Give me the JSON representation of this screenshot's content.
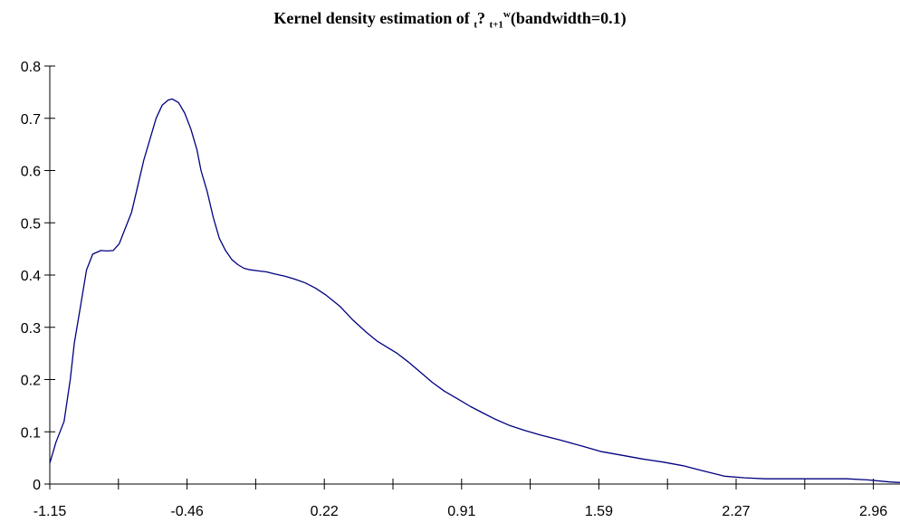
{
  "chart_data": {
    "type": "line",
    "title": {
      "prefix": "Kernel density estimation of ",
      "sub1": "t",
      "mid": "? ",
      "sub2": "t+1",
      "sup": "w",
      "suffix": "(bandwidth=0.1)"
    },
    "xlabel": "",
    "ylabel": "",
    "xlim": [
      -1.15,
      3.01
    ],
    "ylim": [
      0,
      0.8
    ],
    "x_tick_labels": [
      "-1.15",
      "-0.46",
      "0.22",
      "0.91",
      "1.59",
      "2.27",
      "2.96"
    ],
    "y_ticks": [
      0,
      0.1,
      0.2,
      0.3,
      0.4,
      0.5,
      0.6,
      0.7,
      0.8
    ],
    "y_tick_labels": [
      "0",
      "0.1",
      "0.2",
      "0.3",
      "0.4",
      "0.5",
      "0.6",
      "0.7",
      "0.8"
    ],
    "grid": false,
    "line_color": "#000080",
    "series": [
      {
        "x": [
          -1.15,
          -1.12,
          -1.08,
          -1.05,
          -1.03,
          -1.0,
          -0.97,
          -0.94,
          -0.9,
          -0.87,
          -0.84,
          -0.81,
          -0.78,
          -0.75,
          -0.72,
          -0.69,
          -0.66,
          -0.63,
          -0.6,
          -0.57,
          -0.55,
          -0.52,
          -0.49,
          -0.46,
          -0.43,
          -0.41,
          -0.38,
          -0.35,
          -0.32,
          -0.29,
          -0.26,
          -0.23,
          -0.2,
          -0.17,
          -0.13,
          -0.09,
          -0.05,
          0.0,
          0.05,
          0.1,
          0.15,
          0.2,
          0.27,
          0.33,
          0.4,
          0.45,
          0.5,
          0.55,
          0.6,
          0.66,
          0.72,
          0.78,
          0.85,
          0.91,
          0.97,
          1.03,
          1.1,
          1.17,
          1.25,
          1.35,
          1.45,
          1.55,
          1.65,
          1.75,
          1.85,
          1.95,
          2.05,
          2.15,
          2.25,
          2.35,
          2.45,
          2.55,
          2.65,
          2.75,
          2.85,
          2.96,
          3.01
        ],
        "y": [
          0.04,
          0.08,
          0.12,
          0.2,
          0.27,
          0.34,
          0.41,
          0.44,
          0.447,
          0.446,
          0.447,
          0.46,
          0.49,
          0.52,
          0.57,
          0.62,
          0.66,
          0.7,
          0.725,
          0.735,
          0.737,
          0.73,
          0.71,
          0.68,
          0.64,
          0.6,
          0.56,
          0.51,
          0.47,
          0.447,
          0.43,
          0.42,
          0.413,
          0.41,
          0.408,
          0.406,
          0.402,
          0.398,
          0.392,
          0.385,
          0.375,
          0.362,
          0.34,
          0.315,
          0.29,
          0.274,
          0.262,
          0.25,
          0.235,
          0.215,
          0.195,
          0.178,
          0.162,
          0.148,
          0.136,
          0.124,
          0.112,
          0.103,
          0.094,
          0.084,
          0.073,
          0.062,
          0.055,
          0.048,
          0.042,
          0.035,
          0.025,
          0.015,
          0.012,
          0.01,
          0.01,
          0.01,
          0.01,
          0.01,
          0.008,
          0.004,
          0.003
        ]
      }
    ]
  }
}
